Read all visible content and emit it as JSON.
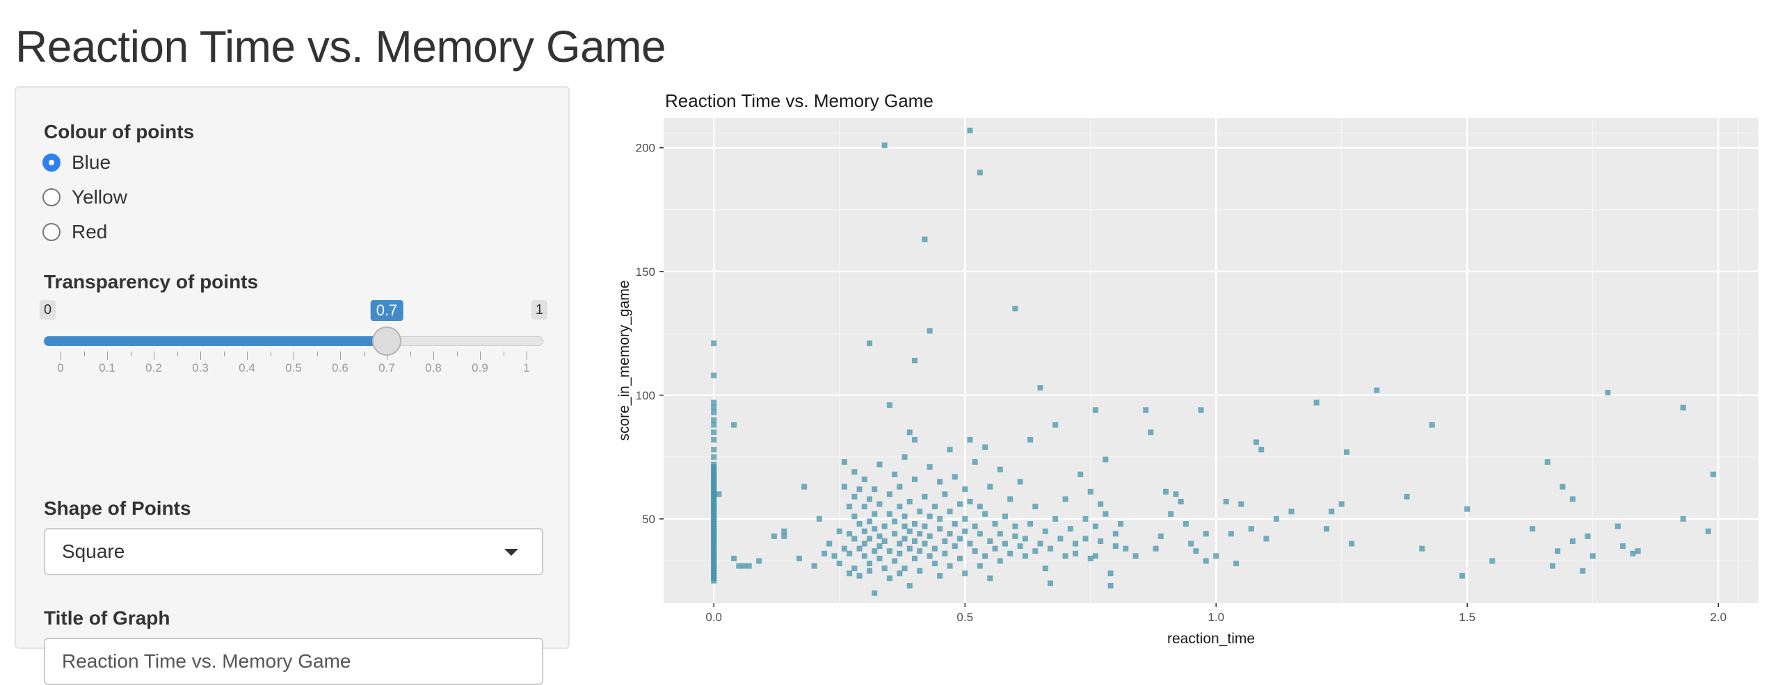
{
  "page": {
    "title": "Reaction Time vs. Memory Game"
  },
  "controls": {
    "colour": {
      "label": "Colour of points",
      "options": [
        "Blue",
        "Yellow",
        "Red"
      ],
      "selected": "Blue"
    },
    "transparency": {
      "label": "Transparency of points",
      "min": 0,
      "max": 1,
      "value": 0.7,
      "min_label": "0",
      "max_label": "1",
      "value_label": "0.7",
      "ticks": [
        "0",
        "0.1",
        "0.2",
        "0.3",
        "0.4",
        "0.5",
        "0.6",
        "0.7",
        "0.8",
        "0.9",
        "1"
      ]
    },
    "shape": {
      "label": "Shape of Points",
      "value": "Square"
    },
    "title_input": {
      "label": "Title of Graph",
      "value": "Reaction Time vs. Memory Game"
    }
  },
  "colors": {
    "accent": "#428bca",
    "radio_checked": "#2f80ed",
    "point": "#3d8ea6",
    "plot_bg": "#ebebeb"
  },
  "chart_data": {
    "type": "scatter",
    "title": "Reaction Time vs. Memory Game",
    "xlabel": "reaction_time",
    "ylabel": "score_in_memory_game",
    "xlim": [
      -0.1,
      2.08
    ],
    "ylim": [
      16,
      212
    ],
    "xticks": [
      0.0,
      0.5,
      1.0,
      1.5,
      2.0
    ],
    "xtick_labels": [
      "0.0",
      "0.5",
      "1.0",
      "1.5",
      "2.0"
    ],
    "yticks": [
      50,
      100,
      150,
      200
    ],
    "ytick_labels": [
      "50",
      "100",
      "150",
      "200"
    ],
    "grid": true,
    "legend": "none",
    "marker": "square",
    "alpha": 0.7,
    "points": [
      [
        0,
        25
      ],
      [
        0,
        26
      ],
      [
        0,
        27
      ],
      [
        0,
        28
      ],
      [
        0,
        29
      ],
      [
        0,
        30
      ],
      [
        0,
        31
      ],
      [
        0,
        32
      ],
      [
        0,
        33
      ],
      [
        0,
        34
      ],
      [
        0,
        35
      ],
      [
        0,
        36
      ],
      [
        0,
        37
      ],
      [
        0,
        38
      ],
      [
        0,
        39
      ],
      [
        0,
        40
      ],
      [
        0,
        41
      ],
      [
        0,
        42
      ],
      [
        0,
        43
      ],
      [
        0,
        44
      ],
      [
        0,
        45
      ],
      [
        0,
        46
      ],
      [
        0,
        47
      ],
      [
        0,
        48
      ],
      [
        0,
        49
      ],
      [
        0,
        50
      ],
      [
        0,
        51
      ],
      [
        0,
        52
      ],
      [
        0,
        53
      ],
      [
        0,
        54
      ],
      [
        0,
        55
      ],
      [
        0,
        56
      ],
      [
        0,
        57
      ],
      [
        0,
        58
      ],
      [
        0,
        59
      ],
      [
        0,
        60
      ],
      [
        0,
        61
      ],
      [
        0,
        62
      ],
      [
        0,
        63
      ],
      [
        0,
        64
      ],
      [
        0,
        65
      ],
      [
        0,
        66
      ],
      [
        0,
        67
      ],
      [
        0,
        68
      ],
      [
        0,
        69
      ],
      [
        0,
        70
      ],
      [
        0,
        71
      ],
      [
        0,
        72
      ],
      [
        0,
        75
      ],
      [
        0,
        78
      ],
      [
        0,
        82
      ],
      [
        0,
        85
      ],
      [
        0,
        88
      ],
      [
        0,
        90
      ],
      [
        0,
        93
      ],
      [
        0,
        95
      ],
      [
        0,
        97
      ],
      [
        0,
        108
      ],
      [
        0,
        121
      ],
      [
        0.01,
        60
      ],
      [
        0.04,
        88
      ],
      [
        0.04,
        34
      ],
      [
        0.05,
        31
      ],
      [
        0.06,
        31
      ],
      [
        0.07,
        31
      ],
      [
        0.09,
        33
      ],
      [
        0.12,
        43
      ],
      [
        0.14,
        45
      ],
      [
        0.14,
        43
      ],
      [
        0.17,
        34
      ],
      [
        0.18,
        63
      ],
      [
        0.2,
        31
      ],
      [
        0.21,
        50
      ],
      [
        0.22,
        36
      ],
      [
        0.23,
        40
      ],
      [
        0.24,
        35
      ],
      [
        0.25,
        45
      ],
      [
        0.25,
        32
      ],
      [
        0.26,
        38
      ],
      [
        0.26,
        63
      ],
      [
        0.26,
        73
      ],
      [
        0.27,
        28
      ],
      [
        0.27,
        55
      ],
      [
        0.27,
        44
      ],
      [
        0.27,
        36
      ],
      [
        0.28,
        51
      ],
      [
        0.28,
        59
      ],
      [
        0.28,
        69
      ],
      [
        0.28,
        42
      ],
      [
        0.28,
        30
      ],
      [
        0.29,
        48
      ],
      [
        0.29,
        38
      ],
      [
        0.29,
        62
      ],
      [
        0.29,
        27
      ],
      [
        0.3,
        40
      ],
      [
        0.3,
        35
      ],
      [
        0.3,
        55
      ],
      [
        0.3,
        45
      ],
      [
        0.3,
        66
      ],
      [
        0.31,
        32
      ],
      [
        0.31,
        42
      ],
      [
        0.31,
        49
      ],
      [
        0.31,
        58
      ],
      [
        0.31,
        121
      ],
      [
        0.31,
        29
      ],
      [
        0.32,
        37
      ],
      [
        0.32,
        46
      ],
      [
        0.32,
        52
      ],
      [
        0.32,
        20
      ],
      [
        0.32,
        62
      ],
      [
        0.33,
        43
      ],
      [
        0.33,
        39
      ],
      [
        0.33,
        34
      ],
      [
        0.33,
        56
      ],
      [
        0.33,
        72
      ],
      [
        0.34,
        30
      ],
      [
        0.34,
        41
      ],
      [
        0.34,
        47
      ],
      [
        0.34,
        201
      ],
      [
        0.35,
        37
      ],
      [
        0.35,
        52
      ],
      [
        0.35,
        96
      ],
      [
        0.35,
        60
      ],
      [
        0.35,
        26
      ],
      [
        0.36,
        44
      ],
      [
        0.36,
        33
      ],
      [
        0.36,
        49
      ],
      [
        0.36,
        68
      ],
      [
        0.37,
        40
      ],
      [
        0.37,
        55
      ],
      [
        0.37,
        36
      ],
      [
        0.37,
        28
      ],
      [
        0.37,
        63
      ],
      [
        0.38,
        47
      ],
      [
        0.38,
        42
      ],
      [
        0.38,
        30
      ],
      [
        0.38,
        75
      ],
      [
        0.38,
        51
      ],
      [
        0.39,
        38
      ],
      [
        0.39,
        57
      ],
      [
        0.39,
        45
      ],
      [
        0.39,
        85
      ],
      [
        0.39,
        23
      ],
      [
        0.4,
        41
      ],
      [
        0.4,
        34
      ],
      [
        0.4,
        114
      ],
      [
        0.4,
        48
      ],
      [
        0.4,
        66
      ],
      [
        0.4,
        82
      ],
      [
        0.41,
        53
      ],
      [
        0.41,
        37
      ],
      [
        0.41,
        44
      ],
      [
        0.41,
        29
      ],
      [
        0.42,
        163
      ],
      [
        0.42,
        59
      ],
      [
        0.42,
        40
      ],
      [
        0.42,
        47
      ],
      [
        0.43,
        126
      ],
      [
        0.43,
        35
      ],
      [
        0.43,
        51
      ],
      [
        0.43,
        71
      ],
      [
        0.43,
        43
      ],
      [
        0.44,
        55
      ],
      [
        0.44,
        38
      ],
      [
        0.44,
        32
      ],
      [
        0.45,
        46
      ],
      [
        0.45,
        65
      ],
      [
        0.45,
        27
      ],
      [
        0.45,
        50
      ],
      [
        0.46,
        41
      ],
      [
        0.46,
        60
      ],
      [
        0.46,
        36
      ],
      [
        0.47,
        44
      ],
      [
        0.47,
        53
      ],
      [
        0.47,
        78
      ],
      [
        0.47,
        31
      ],
      [
        0.48,
        48
      ],
      [
        0.48,
        39
      ],
      [
        0.48,
        67
      ],
      [
        0.49,
        42
      ],
      [
        0.49,
        56
      ],
      [
        0.49,
        34
      ],
      [
        0.5,
        50
      ],
      [
        0.5,
        45
      ],
      [
        0.5,
        62
      ],
      [
        0.5,
        28
      ],
      [
        0.51,
        207
      ],
      [
        0.51,
        82
      ],
      [
        0.51,
        40
      ],
      [
        0.51,
        57
      ],
      [
        0.52,
        37
      ],
      [
        0.52,
        47
      ],
      [
        0.52,
        73
      ],
      [
        0.53,
        190
      ],
      [
        0.53,
        44
      ],
      [
        0.53,
        31
      ],
      [
        0.53,
        55
      ],
      [
        0.54,
        52
      ],
      [
        0.54,
        35
      ],
      [
        0.54,
        79
      ],
      [
        0.55,
        41
      ],
      [
        0.55,
        63
      ],
      [
        0.55,
        26
      ],
      [
        0.56,
        48
      ],
      [
        0.56,
        38
      ],
      [
        0.57,
        44
      ],
      [
        0.57,
        70
      ],
      [
        0.57,
        33
      ],
      [
        0.58,
        51
      ],
      [
        0.58,
        40
      ],
      [
        0.59,
        58
      ],
      [
        0.59,
        36
      ],
      [
        0.6,
        135
      ],
      [
        0.6,
        43
      ],
      [
        0.6,
        47
      ],
      [
        0.61,
        39
      ],
      [
        0.61,
        65
      ],
      [
        0.62,
        42
      ],
      [
        0.62,
        35
      ],
      [
        0.63,
        82
      ],
      [
        0.63,
        48
      ],
      [
        0.64,
        37
      ],
      [
        0.64,
        55
      ],
      [
        0.65,
        103
      ],
      [
        0.65,
        40
      ],
      [
        0.66,
        30
      ],
      [
        0.66,
        45
      ],
      [
        0.67,
        24
      ],
      [
        0.67,
        38
      ],
      [
        0.68,
        88
      ],
      [
        0.68,
        50
      ],
      [
        0.69,
        42
      ],
      [
        0.7,
        35
      ],
      [
        0.7,
        58
      ],
      [
        0.71,
        46
      ],
      [
        0.72,
        40
      ],
      [
        0.72,
        36
      ],
      [
        0.73,
        68
      ],
      [
        0.74,
        50
      ],
      [
        0.74,
        42
      ],
      [
        0.75,
        34
      ],
      [
        0.75,
        61
      ],
      [
        0.76,
        94
      ],
      [
        0.76,
        47
      ],
      [
        0.76,
        35
      ],
      [
        0.77,
        56
      ],
      [
        0.77,
        41
      ],
      [
        0.78,
        74
      ],
      [
        0.78,
        52
      ],
      [
        0.79,
        28
      ],
      [
        0.79,
        23
      ],
      [
        0.8,
        44
      ],
      [
        0.8,
        39
      ],
      [
        0.81,
        48
      ],
      [
        0.82,
        38
      ],
      [
        0.84,
        35
      ],
      [
        0.86,
        94
      ],
      [
        0.87,
        85
      ],
      [
        0.88,
        38
      ],
      [
        0.89,
        43
      ],
      [
        0.9,
        61
      ],
      [
        0.91,
        52
      ],
      [
        0.92,
        60
      ],
      [
        0.93,
        57
      ],
      [
        0.94,
        48
      ],
      [
        0.95,
        40
      ],
      [
        0.96,
        37
      ],
      [
        0.97,
        94
      ],
      [
        0.98,
        44
      ],
      [
        0.98,
        33
      ],
      [
        1.0,
        35
      ],
      [
        1.02,
        57
      ],
      [
        1.03,
        44
      ],
      [
        1.04,
        32
      ],
      [
        1.05,
        56
      ],
      [
        1.07,
        46
      ],
      [
        1.08,
        81
      ],
      [
        1.09,
        78
      ],
      [
        1.1,
        42
      ],
      [
        1.12,
        50
      ],
      [
        1.15,
        53
      ],
      [
        1.2,
        97
      ],
      [
        1.22,
        46
      ],
      [
        1.23,
        53
      ],
      [
        1.25,
        56
      ],
      [
        1.26,
        77
      ],
      [
        1.27,
        40
      ],
      [
        1.32,
        102
      ],
      [
        1.38,
        59
      ],
      [
        1.41,
        38
      ],
      [
        1.43,
        88
      ],
      [
        1.49,
        27
      ],
      [
        1.5,
        54
      ],
      [
        1.55,
        33
      ],
      [
        1.63,
        46
      ],
      [
        1.66,
        73
      ],
      [
        1.67,
        31
      ],
      [
        1.68,
        37
      ],
      [
        1.69,
        63
      ],
      [
        1.71,
        58
      ],
      [
        1.71,
        41
      ],
      [
        1.73,
        29
      ],
      [
        1.74,
        43
      ],
      [
        1.75,
        35
      ],
      [
        1.78,
        101
      ],
      [
        1.8,
        47
      ],
      [
        1.81,
        39
      ],
      [
        1.83,
        36
      ],
      [
        1.84,
        37
      ],
      [
        1.93,
        95
      ],
      [
        1.93,
        50
      ],
      [
        1.98,
        45
      ],
      [
        1.99,
        68
      ]
    ]
  }
}
